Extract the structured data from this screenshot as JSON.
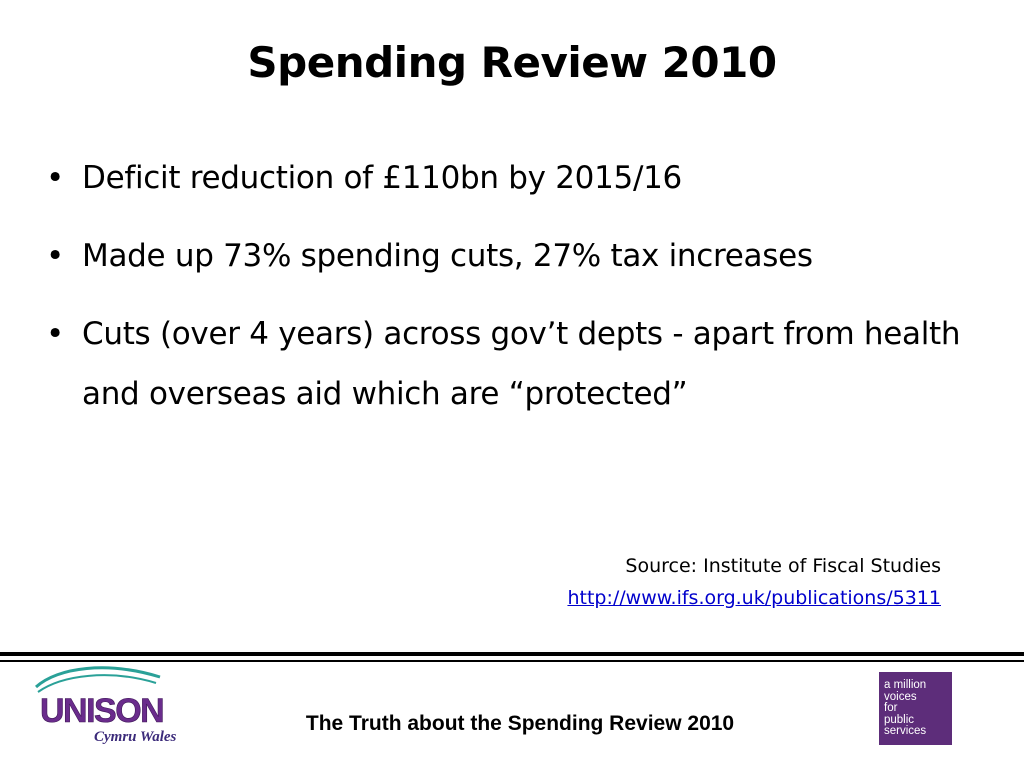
{
  "slide": {
    "title": "Spending Review 2010",
    "bullets": [
      "Deficit reduction of £110bn by 2015/16",
      "Made up 73% spending cuts, 27% tax increases",
      "Cuts (over 4 years) across gov’t depts - apart from health and overseas aid which are “protected”"
    ],
    "bullet_glyph": "•",
    "source_label": "Source: Institute of Fiscal Studies",
    "source_link": "http://www.ifs.org.uk/publications/5311"
  },
  "footer": {
    "text": "The Truth about the Spending Review 2010",
    "unison_logo": {
      "name": "UNISON",
      "subtitle": "Cymru Wales",
      "colors": {
        "purple": "#6a2c8c",
        "green": "#2aa198"
      }
    },
    "million_logo": {
      "lines": [
        "a million",
        "voices",
        "for",
        "public",
        "services"
      ],
      "background": "#5d2d7a"
    }
  }
}
